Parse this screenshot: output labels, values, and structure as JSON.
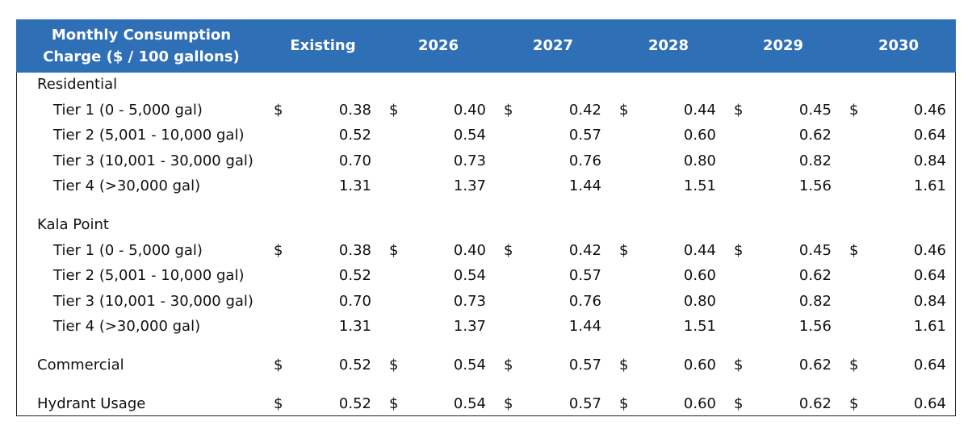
{
  "header": {
    "title": "Monthly Consumption Charge ($ / 100 gallons)",
    "columns": [
      "Existing",
      "2026",
      "2027",
      "2028",
      "2029",
      "2030"
    ]
  },
  "sections": [
    {
      "title": "Residential",
      "rows": [
        {
          "label": "Tier 1 (0 - 5,000 gal)",
          "currency": "$",
          "values": [
            "0.38",
            "0.40",
            "0.42",
            "0.44",
            "0.45",
            "0.46"
          ]
        },
        {
          "label": "Tier 2 (5,001 - 10,000 gal)",
          "values": [
            "0.52",
            "0.54",
            "0.57",
            "0.60",
            "0.62",
            "0.64"
          ]
        },
        {
          "label": "Tier 3 (10,001 - 30,000 gal)",
          "values": [
            "0.70",
            "0.73",
            "0.76",
            "0.80",
            "0.82",
            "0.84"
          ]
        },
        {
          "label": "Tier 4 (>30,000 gal)",
          "values": [
            "1.31",
            "1.37",
            "1.44",
            "1.51",
            "1.56",
            "1.61"
          ]
        }
      ]
    },
    {
      "title": "Kala Point",
      "rows": [
        {
          "label": "Tier 1 (0 - 5,000 gal)",
          "currency": "$",
          "values": [
            "0.38",
            "0.40",
            "0.42",
            "0.44",
            "0.45",
            "0.46"
          ]
        },
        {
          "label": "Tier 2 (5,001 - 10,000 gal)",
          "values": [
            "0.52",
            "0.54",
            "0.57",
            "0.60",
            "0.62",
            "0.64"
          ]
        },
        {
          "label": "Tier 3 (10,001 - 30,000 gal)",
          "values": [
            "0.70",
            "0.73",
            "0.76",
            "0.80",
            "0.82",
            "0.84"
          ]
        },
        {
          "label": "Tier 4 (>30,000 gal)",
          "values": [
            "1.31",
            "1.37",
            "1.44",
            "1.51",
            "1.56",
            "1.61"
          ]
        }
      ]
    }
  ],
  "rows": [
    {
      "label": "Commercial",
      "currency": "$",
      "values": [
        "0.52",
        "0.54",
        "0.57",
        "0.60",
        "0.62",
        "0.64"
      ]
    },
    {
      "label": "Hydrant Usage",
      "currency": "$",
      "values": [
        "0.52",
        "0.54",
        "0.57",
        "0.60",
        "0.62",
        "0.64"
      ]
    }
  ]
}
